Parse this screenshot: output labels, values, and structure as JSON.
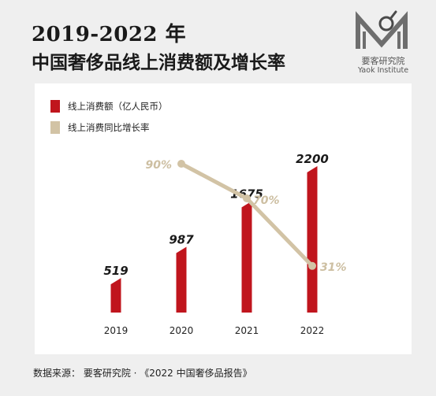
{
  "title": {
    "line1": "2019-2022 年",
    "line2": "中国奢侈品线上消费额及增长率"
  },
  "logo": {
    "name_cn": "要客研究院",
    "name_en": "Yaok Institute"
  },
  "colors": {
    "bar": "#c0151d",
    "line": "#d2c3a5",
    "line_label": "#cdbfa2",
    "bar_label": "#1a1a1a",
    "background": "#efefef"
  },
  "chart_data": {
    "type": "bar+line",
    "categories": [
      "2019",
      "2020",
      "2021",
      "2022"
    ],
    "series": [
      {
        "name": "线上消费额（亿人民币）",
        "type": "bar",
        "values": [
          519,
          987,
          1675,
          2200
        ],
        "labels": [
          "519",
          "987",
          "1675",
          "2200"
        ]
      },
      {
        "name": "线上消费同比增长率",
        "type": "line",
        "values": [
          null,
          90,
          70,
          31
        ],
        "labels": [
          null,
          "90%",
          "70%",
          "31%"
        ]
      }
    ],
    "legend_position": "top-left",
    "grid": false
  },
  "source": "数据来源：  要客研究院  · 《2022 中国奢侈品报告》"
}
